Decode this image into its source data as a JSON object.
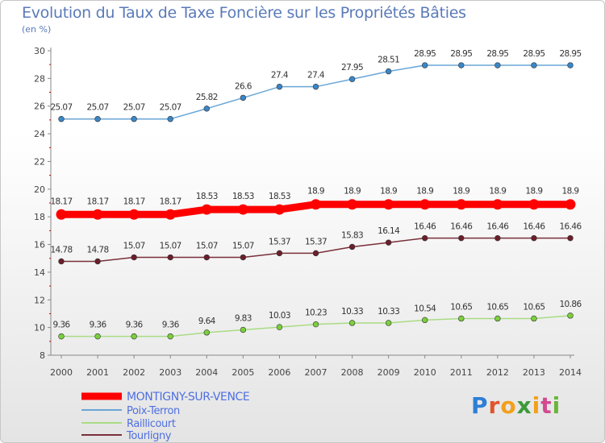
{
  "title": "Evolution du Taux de Taxe Foncière sur les Propriétés Bâties",
  "subtitle": "(en %)",
  "brand": {
    "letters": [
      "P",
      "r",
      "o",
      "x",
      "i",
      "t",
      "i"
    ],
    "colors": [
      "#2f7fd6",
      "#e0542a",
      "#f2a01c",
      "#3d9a3a",
      "#f2a01c",
      "#d34a8f",
      "#6ab43a"
    ]
  },
  "chart_data": {
    "type": "line",
    "x": [
      "2000",
      "2001",
      "2002",
      "2003",
      "2004",
      "2005",
      "2006",
      "2007",
      "2008",
      "2009",
      "2010",
      "2011",
      "2012",
      "2013",
      "2014"
    ],
    "ylim": [
      8,
      30
    ],
    "yticks": [
      "8",
      "10",
      "12",
      "14",
      "16",
      "18",
      "20",
      "22",
      "24",
      "26",
      "28",
      "30"
    ],
    "grid": false,
    "legend_position": "bottom-left",
    "series": [
      {
        "name": "MONTIGNY-SUR-VENCE",
        "color": "#ff0000",
        "values": [
          18.17,
          18.17,
          18.17,
          18.17,
          18.53,
          18.53,
          18.53,
          18.9,
          18.9,
          18.9,
          18.9,
          18.9,
          18.9,
          18.9,
          18.9
        ],
        "labels": [
          "18.17",
          "18.17",
          "18.17",
          "18.17",
          "18.53",
          "18.53",
          "18.53",
          "18.9",
          "18.9",
          "18.9",
          "18.9",
          "18.9",
          "18.9",
          "18.9",
          "18.9"
        ],
        "emphasis": true
      },
      {
        "name": "Poix-Terron",
        "color": "#6aa6d6",
        "marker": "#3a86c8",
        "values": [
          25.07,
          25.07,
          25.07,
          25.07,
          25.82,
          26.6,
          27.4,
          27.4,
          27.95,
          28.51,
          28.95,
          28.95,
          28.95,
          28.95,
          28.95
        ],
        "labels": [
          "25.07",
          "25.07",
          "25.07",
          "25.07",
          "25.82",
          "26.6",
          "27.4",
          "27.4",
          "27.95",
          "28.51",
          "28.95",
          "28.95",
          "28.95",
          "28.95",
          "28.95"
        ]
      },
      {
        "name": "Raillicourt",
        "color": "#a9dc84",
        "marker": "#7bcf3c",
        "values": [
          9.36,
          9.36,
          9.36,
          9.36,
          9.64,
          9.83,
          10.03,
          10.23,
          10.33,
          10.33,
          10.54,
          10.65,
          10.65,
          10.65,
          10.86
        ],
        "labels": [
          "9.36",
          "9.36",
          "9.36",
          "9.36",
          "9.64",
          "9.83",
          "10.03",
          "10.23",
          "10.33",
          "10.33",
          "10.54",
          "10.65",
          "10.65",
          "10.65",
          "10.86"
        ]
      },
      {
        "name": "Tourligny",
        "color": "#7a2f3a",
        "marker": "#6b1f2a",
        "values": [
          14.78,
          14.78,
          15.07,
          15.07,
          15.07,
          15.07,
          15.37,
          15.37,
          15.83,
          16.14,
          16.46,
          16.46,
          16.46,
          16.46,
          16.46
        ],
        "labels": [
          "14.78",
          "14.78",
          "15.07",
          "15.07",
          "15.07",
          "15.07",
          "15.37",
          "15.37",
          "15.83",
          "16.14",
          "16.46",
          "16.46",
          "16.46",
          "16.46",
          "16.46"
        ]
      }
    ]
  }
}
